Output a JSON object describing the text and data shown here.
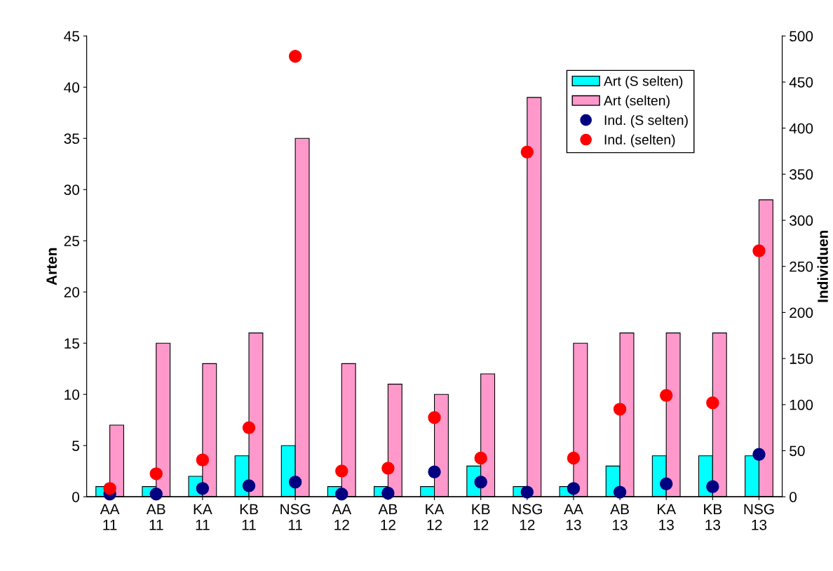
{
  "chart_data": {
    "type": "bar",
    "xlabel": null,
    "ylabel": "Arten",
    "y2label": "Individuen",
    "categories": [
      "AA\n11",
      "AB\n11",
      "KA\n11",
      "KB\n11",
      "NSG\n11",
      "AA\n12",
      "AB\n12",
      "KA\n12",
      "KB\n12",
      "NSG\n12",
      "AA\n13",
      "AB\n13",
      "KA\n13",
      "KB\n13",
      "NSG\n13"
    ],
    "series": [
      {
        "name": "Art (S selten)",
        "color": "#00ffff",
        "values": [
          1,
          1,
          2,
          4,
          5,
          1,
          1,
          1,
          3,
          1,
          1,
          3,
          4,
          4,
          4
        ]
      },
      {
        "name": "Art (selten)",
        "color": "#ff99cc",
        "values": [
          7,
          15,
          13,
          16,
          35,
          13,
          11,
          10,
          12,
          39,
          15,
          16,
          16,
          16,
          29
        ]
      },
      {
        "name": "Ind. (S selten)",
        "type": "scatter",
        "axis": "y2",
        "color": "#000080",
        "values": [
          3,
          3,
          9,
          12,
          16,
          3,
          4,
          27,
          16,
          5,
          9,
          5,
          14,
          11,
          46
        ]
      },
      {
        "name": "Ind. (selten)",
        "type": "scatter",
        "axis": "y2",
        "color": "#ff0000",
        "values": [
          9,
          25,
          40,
          75,
          478,
          28,
          31,
          86,
          42,
          374,
          42,
          95,
          110,
          102,
          267
        ]
      }
    ],
    "ylim": [
      0,
      45
    ],
    "yticks": [
      0,
      5,
      10,
      15,
      20,
      25,
      30,
      35,
      40,
      45
    ],
    "y2lim": [
      0,
      500
    ],
    "y2ticks": [
      0,
      50,
      100,
      150,
      200,
      250,
      300,
      350,
      400,
      450,
      500
    ],
    "marker": "circle",
    "grid": false,
    "legend": "top right"
  }
}
